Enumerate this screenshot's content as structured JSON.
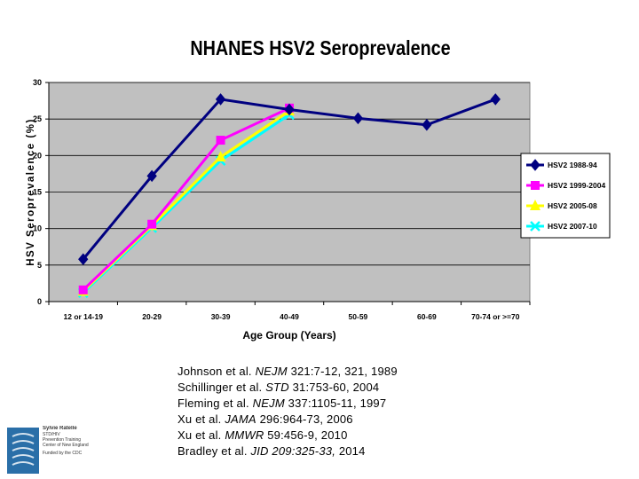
{
  "chart_data": {
    "type": "line",
    "title": "NHANES HSV2 Seroprevalence",
    "xlabel": "Age Group (Years)",
    "ylabel": "HSV Seroprevalence (%)",
    "ylim": [
      0,
      30
    ],
    "yticks": [
      0,
      5,
      10,
      15,
      20,
      25,
      30
    ],
    "grid": true,
    "legend_position": "right",
    "categories": [
      "12 or 14-19",
      "20-29",
      "30-39",
      "40-49",
      "50-59",
      "60-69",
      "70-74 or >=70"
    ],
    "series": [
      {
        "name": "HSV2 1988-94",
        "values": [
          5.8,
          17.2,
          27.7,
          26.3,
          25.1,
          24.2,
          27.7
        ],
        "color": "#000080",
        "marker": "diamond"
      },
      {
        "name": "HSV2 1999-2004",
        "values": [
          1.6,
          10.6,
          22.1,
          26.5,
          null,
          null,
          null
        ],
        "color": "#ff00ff",
        "marker": "square"
      },
      {
        "name": "HSV2 2005-08",
        "values": [
          1.4,
          10.4,
          19.8,
          26.1,
          null,
          null,
          null
        ],
        "color": "#ffff00",
        "marker": "triangle"
      },
      {
        "name": "HSV2 2007-10",
        "values": [
          1.2,
          10.1,
          19.3,
          25.6,
          null,
          null,
          null
        ],
        "color": "#00ffff",
        "marker": "x"
      }
    ],
    "plot_background": "#c0c0c0"
  },
  "references": [
    {
      "pre": "Johnson et al. ",
      "em": "NEJM",
      "post": " 321:7-12, 321, 1989"
    },
    {
      "pre": "Schillinger et al. ",
      "em": "STD",
      "post": " 31:753-60, 2004"
    },
    {
      "pre": "Fleming et al. ",
      "em": "NEJM",
      "post": " 337:1105-11, 1997"
    },
    {
      "pre": "Xu et al. ",
      "em": "JAMA",
      "post": " 296:964-73, 2006"
    },
    {
      "pre": "Xu et al. ",
      "em": "MMWR",
      "post": " 59:456-9, 2010"
    },
    {
      "pre": "Bradley et al. ",
      "em": "JID 209:325-33,",
      "post": " 2014"
    }
  ],
  "logo": {
    "lines": [
      "Sylvie Ratelle",
      "STD/HIV",
      "Prevention Training",
      "Center of New England"
    ],
    "subtext": [
      "Funded by the CDC"
    ]
  }
}
